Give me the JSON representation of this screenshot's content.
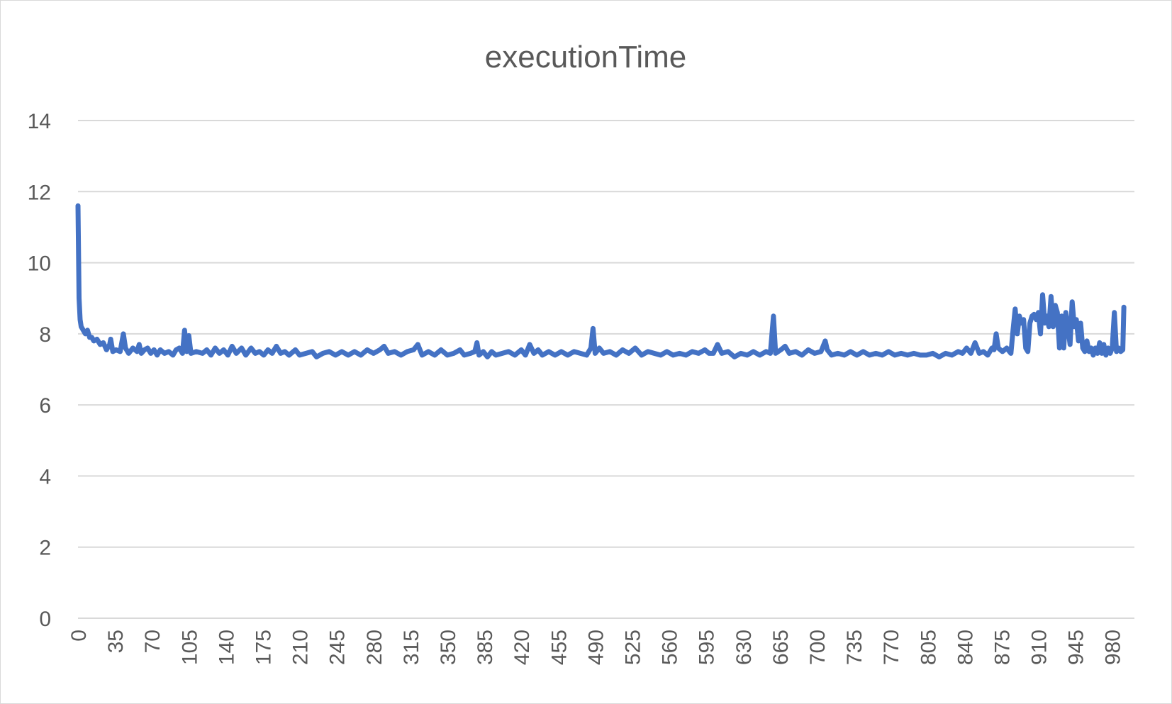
{
  "chart_data": {
    "type": "line",
    "title": "executionTime",
    "xlabel": "",
    "ylabel": "",
    "ylim": [
      0,
      14
    ],
    "xlim": [
      0,
      1001
    ],
    "yticks": [
      0,
      2,
      4,
      6,
      8,
      10,
      12,
      14
    ],
    "xticks": [
      0,
      35,
      70,
      105,
      140,
      175,
      210,
      245,
      280,
      315,
      350,
      385,
      420,
      455,
      490,
      525,
      560,
      595,
      630,
      665,
      700,
      735,
      770,
      805,
      840,
      875,
      910,
      945,
      980
    ],
    "grid": true,
    "legend": "none",
    "colors": {
      "series": "#4472c4",
      "grid": "#d9d9d9",
      "text": "#595959"
    },
    "series": [
      {
        "name": "",
        "points": [
          [
            0,
            11.6
          ],
          [
            1,
            9.0
          ],
          [
            2,
            8.4
          ],
          [
            3,
            8.2
          ],
          [
            5,
            8.1
          ],
          [
            7,
            8.0
          ],
          [
            9,
            8.1
          ],
          [
            11,
            7.9
          ],
          [
            13,
            7.9
          ],
          [
            15,
            7.8
          ],
          [
            18,
            7.85
          ],
          [
            21,
            7.7
          ],
          [
            24,
            7.75
          ],
          [
            27,
            7.55
          ],
          [
            30,
            7.7
          ],
          [
            31,
            7.85
          ],
          [
            33,
            7.5
          ],
          [
            36,
            7.55
          ],
          [
            40,
            7.5
          ],
          [
            43,
            8.0
          ],
          [
            45,
            7.6
          ],
          [
            48,
            7.45
          ],
          [
            52,
            7.6
          ],
          [
            56,
            7.5
          ],
          [
            58,
            7.7
          ],
          [
            60,
            7.45
          ],
          [
            63,
            7.55
          ],
          [
            66,
            7.6
          ],
          [
            69,
            7.45
          ],
          [
            72,
            7.55
          ],
          [
            75,
            7.4
          ],
          [
            78,
            7.55
          ],
          [
            82,
            7.45
          ],
          [
            86,
            7.5
          ],
          [
            90,
            7.4
          ],
          [
            93,
            7.55
          ],
          [
            96,
            7.6
          ],
          [
            99,
            7.45
          ],
          [
            101,
            8.1
          ],
          [
            103,
            7.5
          ],
          [
            105,
            7.95
          ],
          [
            107,
            7.45
          ],
          [
            112,
            7.5
          ],
          [
            118,
            7.45
          ],
          [
            122,
            7.55
          ],
          [
            126,
            7.4
          ],
          [
            130,
            7.6
          ],
          [
            134,
            7.45
          ],
          [
            138,
            7.55
          ],
          [
            142,
            7.4
          ],
          [
            146,
            7.65
          ],
          [
            150,
            7.45
          ],
          [
            155,
            7.6
          ],
          [
            159,
            7.4
          ],
          [
            164,
            7.6
          ],
          [
            168,
            7.45
          ],
          [
            172,
            7.5
          ],
          [
            176,
            7.4
          ],
          [
            180,
            7.55
          ],
          [
            184,
            7.45
          ],
          [
            188,
            7.65
          ],
          [
            192,
            7.45
          ],
          [
            196,
            7.5
          ],
          [
            200,
            7.4
          ],
          [
            206,
            7.55
          ],
          [
            210,
            7.4
          ],
          [
            216,
            7.45
          ],
          [
            222,
            7.5
          ],
          [
            226,
            7.35
          ],
          [
            232,
            7.45
          ],
          [
            238,
            7.5
          ],
          [
            244,
            7.4
          ],
          [
            250,
            7.5
          ],
          [
            256,
            7.4
          ],
          [
            262,
            7.5
          ],
          [
            268,
            7.4
          ],
          [
            274,
            7.55
          ],
          [
            280,
            7.45
          ],
          [
            286,
            7.55
          ],
          [
            290,
            7.65
          ],
          [
            294,
            7.45
          ],
          [
            300,
            7.5
          ],
          [
            306,
            7.4
          ],
          [
            312,
            7.5
          ],
          [
            318,
            7.55
          ],
          [
            322,
            7.7
          ],
          [
            326,
            7.4
          ],
          [
            332,
            7.5
          ],
          [
            338,
            7.4
          ],
          [
            344,
            7.55
          ],
          [
            350,
            7.4
          ],
          [
            356,
            7.45
          ],
          [
            362,
            7.55
          ],
          [
            366,
            7.4
          ],
          [
            372,
            7.45
          ],
          [
            376,
            7.5
          ],
          [
            378,
            7.75
          ],
          [
            380,
            7.4
          ],
          [
            384,
            7.5
          ],
          [
            388,
            7.35
          ],
          [
            392,
            7.5
          ],
          [
            396,
            7.4
          ],
          [
            402,
            7.45
          ],
          [
            408,
            7.5
          ],
          [
            414,
            7.4
          ],
          [
            420,
            7.55
          ],
          [
            424,
            7.4
          ],
          [
            428,
            7.7
          ],
          [
            432,
            7.45
          ],
          [
            436,
            7.55
          ],
          [
            440,
            7.4
          ],
          [
            446,
            7.5
          ],
          [
            452,
            7.4
          ],
          [
            458,
            7.5
          ],
          [
            464,
            7.4
          ],
          [
            470,
            7.5
          ],
          [
            476,
            7.45
          ],
          [
            482,
            7.4
          ],
          [
            486,
            7.6
          ],
          [
            488,
            8.15
          ],
          [
            490,
            7.45
          ],
          [
            494,
            7.6
          ],
          [
            498,
            7.45
          ],
          [
            504,
            7.5
          ],
          [
            510,
            7.4
          ],
          [
            516,
            7.55
          ],
          [
            522,
            7.45
          ],
          [
            528,
            7.6
          ],
          [
            534,
            7.4
          ],
          [
            540,
            7.5
          ],
          [
            546,
            7.45
          ],
          [
            552,
            7.4
          ],
          [
            558,
            7.5
          ],
          [
            564,
            7.4
          ],
          [
            570,
            7.45
          ],
          [
            576,
            7.4
          ],
          [
            582,
            7.5
          ],
          [
            588,
            7.45
          ],
          [
            594,
            7.55
          ],
          [
            598,
            7.45
          ],
          [
            602,
            7.45
          ],
          [
            606,
            7.7
          ],
          [
            610,
            7.45
          ],
          [
            616,
            7.5
          ],
          [
            622,
            7.35
          ],
          [
            628,
            7.45
          ],
          [
            634,
            7.4
          ],
          [
            640,
            7.5
          ],
          [
            646,
            7.4
          ],
          [
            652,
            7.5
          ],
          [
            656,
            7.45
          ],
          [
            659,
            8.5
          ],
          [
            661,
            7.45
          ],
          [
            666,
            7.55
          ],
          [
            670,
            7.65
          ],
          [
            674,
            7.45
          ],
          [
            680,
            7.5
          ],
          [
            686,
            7.4
          ],
          [
            692,
            7.55
          ],
          [
            698,
            7.45
          ],
          [
            704,
            7.5
          ],
          [
            708,
            7.8
          ],
          [
            710,
            7.55
          ],
          [
            714,
            7.4
          ],
          [
            720,
            7.45
          ],
          [
            726,
            7.4
          ],
          [
            732,
            7.5
          ],
          [
            738,
            7.4
          ],
          [
            744,
            7.5
          ],
          [
            750,
            7.4
          ],
          [
            756,
            7.45
          ],
          [
            762,
            7.4
          ],
          [
            768,
            7.5
          ],
          [
            774,
            7.4
          ],
          [
            780,
            7.45
          ],
          [
            786,
            7.4
          ],
          [
            792,
            7.45
          ],
          [
            798,
            7.4
          ],
          [
            804,
            7.4
          ],
          [
            810,
            7.45
          ],
          [
            816,
            7.35
          ],
          [
            822,
            7.45
          ],
          [
            828,
            7.4
          ],
          [
            834,
            7.5
          ],
          [
            838,
            7.45
          ],
          [
            842,
            7.6
          ],
          [
            846,
            7.45
          ],
          [
            850,
            7.75
          ],
          [
            854,
            7.45
          ],
          [
            858,
            7.5
          ],
          [
            862,
            7.4
          ],
          [
            866,
            7.6
          ],
          [
            868,
            7.55
          ],
          [
            870,
            8.0
          ],
          [
            872,
            7.6
          ],
          [
            876,
            7.5
          ],
          [
            880,
            7.6
          ],
          [
            884,
            7.45
          ],
          [
            886,
            8.1
          ],
          [
            888,
            8.7
          ],
          [
            890,
            8.0
          ],
          [
            892,
            8.5
          ],
          [
            894,
            8.3
          ],
          [
            896,
            8.4
          ],
          [
            898,
            7.6
          ],
          [
            900,
            7.5
          ],
          [
            902,
            8.3
          ],
          [
            904,
            8.5
          ],
          [
            906,
            8.55
          ],
          [
            908,
            8.4
          ],
          [
            910,
            8.6
          ],
          [
            912,
            8.0
          ],
          [
            914,
            9.1
          ],
          [
            916,
            8.3
          ],
          [
            918,
            8.5
          ],
          [
            920,
            8.2
          ],
          [
            922,
            9.05
          ],
          [
            924,
            8.2
          ],
          [
            926,
            8.8
          ],
          [
            928,
            8.6
          ],
          [
            930,
            7.6
          ],
          [
            932,
            8.5
          ],
          [
            934,
            7.6
          ],
          [
            936,
            8.6
          ],
          [
            938,
            8.2
          ],
          [
            940,
            7.7
          ],
          [
            942,
            8.9
          ],
          [
            944,
            8.2
          ],
          [
            946,
            8.4
          ],
          [
            948,
            7.8
          ],
          [
            950,
            8.3
          ],
          [
            952,
            7.6
          ],
          [
            954,
            7.5
          ],
          [
            956,
            7.8
          ],
          [
            958,
            7.5
          ],
          [
            960,
            7.6
          ],
          [
            962,
            7.4
          ],
          [
            964,
            7.6
          ],
          [
            966,
            7.45
          ],
          [
            968,
            7.75
          ],
          [
            970,
            7.45
          ],
          [
            972,
            7.7
          ],
          [
            974,
            7.4
          ],
          [
            976,
            7.6
          ],
          [
            978,
            7.45
          ],
          [
            980,
            7.6
          ],
          [
            982,
            8.6
          ],
          [
            984,
            7.5
          ],
          [
            986,
            7.6
          ],
          [
            988,
            7.5
          ],
          [
            990,
            7.55
          ],
          [
            991,
            8.75
          ]
        ]
      }
    ]
  }
}
